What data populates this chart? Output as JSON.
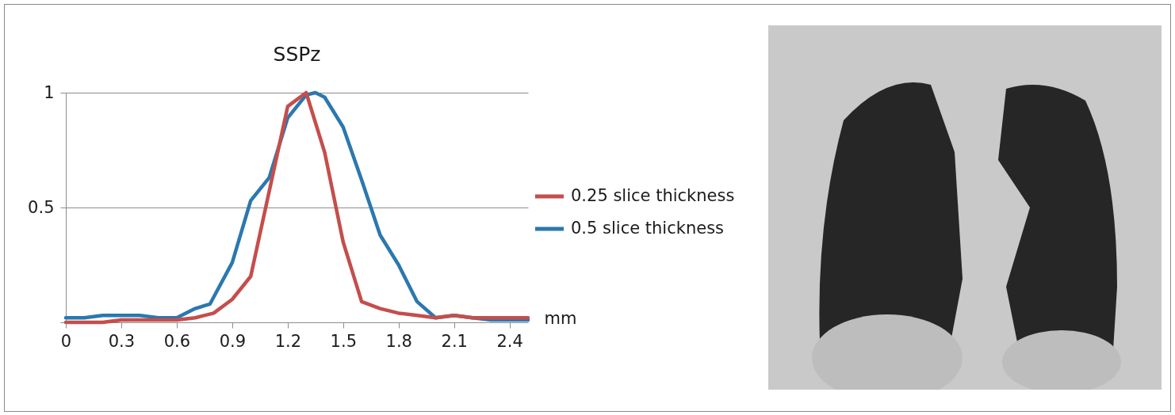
{
  "chart_data": {
    "type": "line",
    "title": "SSPz",
    "xlabel": "mm",
    "x": [
      0,
      0.1,
      0.2,
      0.3,
      0.4,
      0.5,
      0.6,
      0.7,
      0.8,
      0.9,
      1,
      1.1,
      1.2,
      1.3,
      1.4,
      1.5,
      1.6,
      1.7,
      1.8,
      1.9,
      2,
      2.1,
      2.2,
      2.3,
      2.4,
      2.5
    ],
    "series": [
      {
        "name": "0.25 slice thickness",
        "color": "#c44e4c",
        "values": [
          0,
          0,
          0,
          0.01,
          0.01,
          0.01,
          0.01,
          0.02,
          0.04,
          0.1,
          0.2,
          0.57,
          0.94,
          1,
          0.74,
          0.35,
          0.09,
          0.06,
          0.04,
          0.03,
          0.02,
          0.03,
          0.02,
          0.02,
          0.02,
          0.02
        ]
      },
      {
        "name": "0.5 slice thickness",
        "color": "#2b78ae",
        "x": [
          0,
          0.1,
          0.2,
          0.3,
          0.4,
          0.5,
          0.6,
          0.7,
          0.78,
          0.9,
          1,
          1.1,
          1.2,
          1.3,
          1.35,
          1.4,
          1.5,
          1.6,
          1.7,
          1.8,
          1.9,
          2,
          2.1,
          2.2,
          2.3,
          2.4,
          2.5
        ],
        "values": [
          0.02,
          0.02,
          0.03,
          0.03,
          0.03,
          0.02,
          0.02,
          0.06,
          0.08,
          0.26,
          0.53,
          0.63,
          0.89,
          0.99,
          1,
          0.98,
          0.85,
          0.62,
          0.38,
          0.25,
          0.09,
          0.02,
          0.03,
          0.02,
          0.01,
          0.01,
          0.01
        ]
      }
    ],
    "xlim": [
      0,
      2.5
    ],
    "xticks": [
      0,
      0.3,
      0.6,
      0.9,
      1.2,
      1.5,
      1.8,
      2.1,
      2.4
    ],
    "ylim": [
      0,
      1
    ],
    "yticks": [
      {
        "value": 0,
        "label": null
      },
      0.5,
      1
    ],
    "grid": "y",
    "legend": "right"
  }
}
